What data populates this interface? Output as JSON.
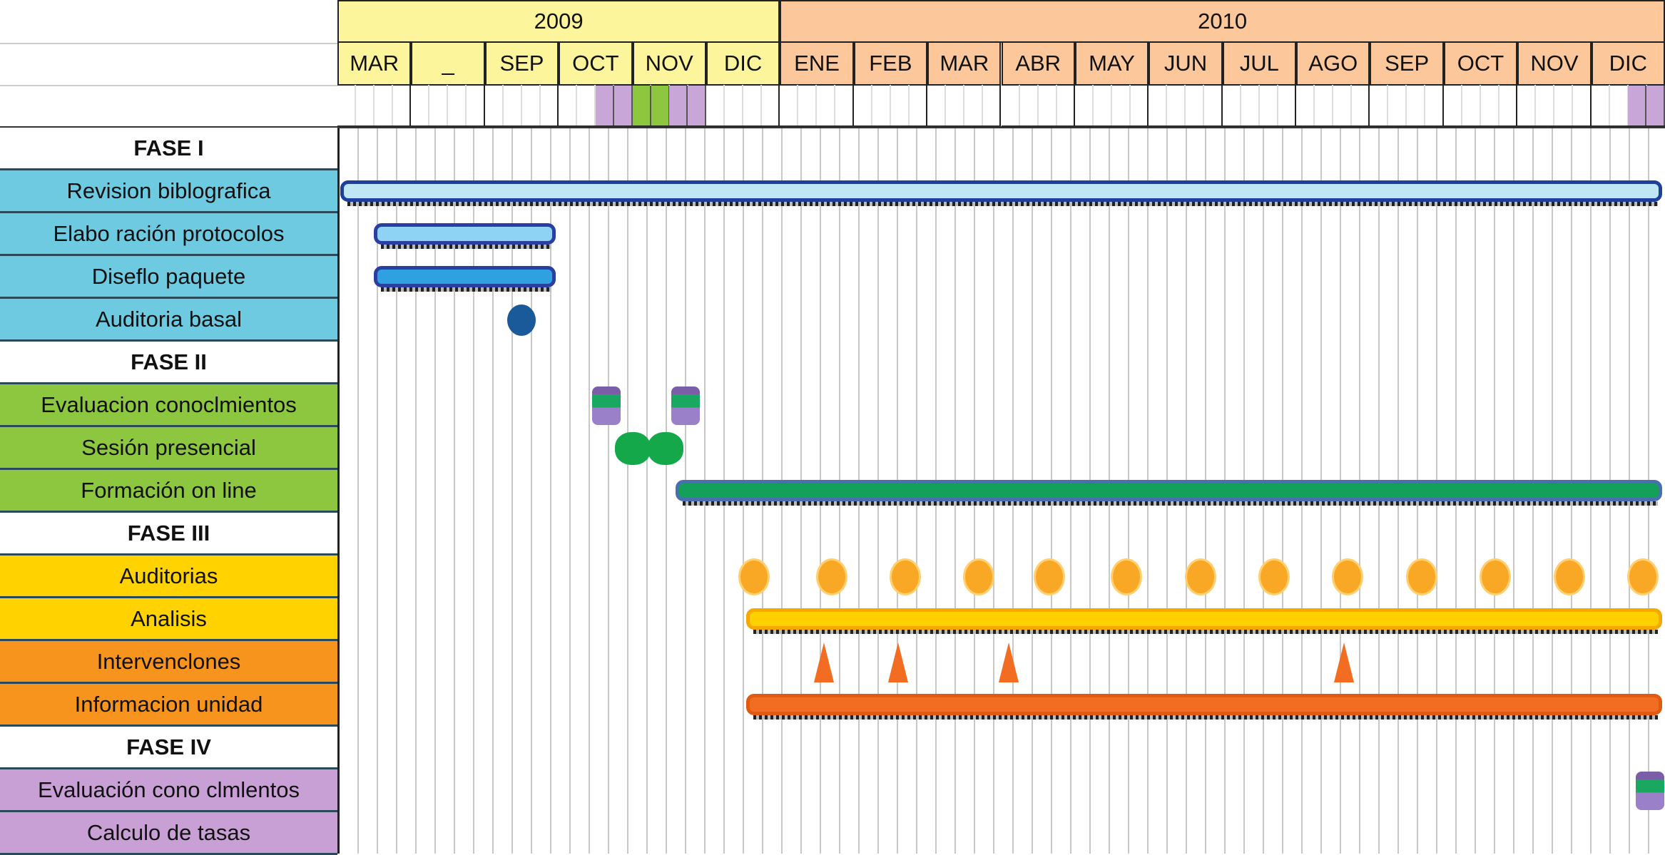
{
  "chart_data": {
    "type": "gantt",
    "years": [
      {
        "label": "2009",
        "months": 6,
        "color": "#fdf59c"
      },
      {
        "label": "2010",
        "months": 12,
        "color": "#fcc79a"
      }
    ],
    "months": [
      "MAR",
      "_",
      "SEP",
      "OCT",
      "NOV",
      "DIC",
      "ENE",
      "FEB",
      "MAR",
      "ABR",
      "MAY",
      "JUN",
      "JUL",
      "AGO",
      "SEP",
      "OCT",
      "NOV",
      "DIC"
    ],
    "highlight_cells": [
      {
        "start": 3.5,
        "end": 4.0,
        "color": "#c9a6d8"
      },
      {
        "start": 4.0,
        "end": 4.5,
        "color": "#8dc63f"
      },
      {
        "start": 4.5,
        "end": 5.0,
        "color": "#c9a6d8"
      },
      {
        "start": 17.5,
        "end": 18,
        "color": "#c9a6d8"
      }
    ],
    "rows": [
      {
        "label": "FASE I",
        "phase": true
      },
      {
        "label": "Revision biblografica",
        "color": "#6dcae0",
        "bar": {
          "start": 0,
          "end": 18,
          "color": "#1e3f9c",
          "fill": "#bfe6f5"
        }
      },
      {
        "label": "Elabo ración protocolos",
        "color": "#6dcae0",
        "bar": {
          "start": 0.45,
          "end": 3.0,
          "color": "#2a3fa0",
          "fill": "#8fd3f4"
        }
      },
      {
        "label": "Diseflo paquete",
        "color": "#6dcae0",
        "bar": {
          "start": 0.45,
          "end": 3.0,
          "color": "#2a3fa0",
          "fill": "#2fa0e0"
        }
      },
      {
        "label": "Auditoria basal",
        "color": "#6dcae0",
        "milestones": [
          2.5
        ],
        "marker": "blue-dot"
      },
      {
        "label": "FASE II",
        "phase": true
      },
      {
        "label": "Evaluacion conoclmientos",
        "color": "#8dc63f",
        "milestones": [
          3.65,
          4.72
        ],
        "marker": "purple-icon"
      },
      {
        "label": "Sesión presencial",
        "color": "#8dc63f",
        "milestones": [
          4.0,
          4.45
        ],
        "marker": "green-blob"
      },
      {
        "label": "Formación on line",
        "color": "#8dc63f",
        "bar": {
          "start": 4.55,
          "end": 18,
          "color": "#4a6fb0",
          "fill": "#14a05a"
        }
      },
      {
        "label": "FASE III",
        "phase": true
      },
      {
        "label": "Auditorias",
        "color": "#ffd200",
        "milestones": [
          5.65,
          6.7,
          7.7,
          8.7,
          9.65,
          10.7,
          11.7,
          12.7,
          13.7,
          14.7,
          15.7,
          16.7,
          17.7
        ],
        "marker": "orange-dot"
      },
      {
        "label": "Analisis",
        "color": "#ffd200",
        "bar": {
          "start": 5.5,
          "end": 18,
          "color": "#f7a800",
          "fill": "#ffd000"
        }
      },
      {
        "label": "Intervenclones",
        "color": "#f7941d",
        "milestones": [
          6.6,
          7.6,
          9.1,
          13.65
        ],
        "marker": "orange-triangle"
      },
      {
        "label": "Informacion unidad",
        "color": "#f7941d",
        "bar": {
          "start": 5.5,
          "end": 18,
          "color": "#e05a10",
          "fill": "#f26d21"
        }
      },
      {
        "label": "FASE IV",
        "phase": true
      },
      {
        "label": "Evaluación cono clmlentos",
        "color": "#c9a0d6",
        "milestones": [
          17.8
        ],
        "marker": "purple-icon"
      },
      {
        "label": "Calculo de tasas",
        "color": "#c9a0d6"
      }
    ]
  }
}
